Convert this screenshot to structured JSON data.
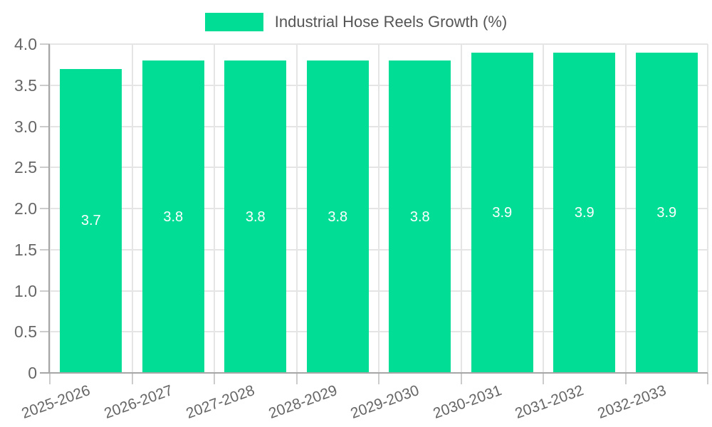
{
  "chart_data": {
    "type": "bar",
    "title": "Industrial Hose Reels Growth (%)",
    "legend": {
      "label": "Industrial Hose Reels Growth (%)",
      "position": "top"
    },
    "categories": [
      "2025-2026",
      "2026-2027",
      "2027-2028",
      "2028-2029",
      "2029-2030",
      "2030-2031",
      "2031-2032",
      "2032-2033"
    ],
    "series": [
      {
        "name": "Industrial Hose Reels Growth (%)",
        "values": [
          3.7,
          3.8,
          3.8,
          3.8,
          3.8,
          3.9,
          3.9,
          3.9
        ]
      }
    ],
    "bar_value_labels": [
      "3.7",
      "3.8",
      "3.8",
      "3.8",
      "3.8",
      "3.9",
      "3.9",
      "3.9"
    ],
    "xlabel": "",
    "ylabel": "",
    "ylim": [
      0,
      4
    ],
    "ytick_values": [
      0,
      0.5,
      1,
      1.5,
      2,
      2.5,
      3,
      3.5,
      4
    ],
    "ytick_labels": [
      "0",
      "0.5",
      "1.0",
      "1.5",
      "2.0",
      "2.5",
      "3.0",
      "3.5",
      "4.0"
    ],
    "grid": true,
    "colors": {
      "bar": "#02DD95",
      "grid": "#e5e5e5",
      "axis": "#a6a6a6",
      "tick": "#cccccc",
      "tick_label": "#666666",
      "legend_text": "#555555",
      "bar_label": "#ffffff",
      "background": "#ffffff"
    }
  }
}
